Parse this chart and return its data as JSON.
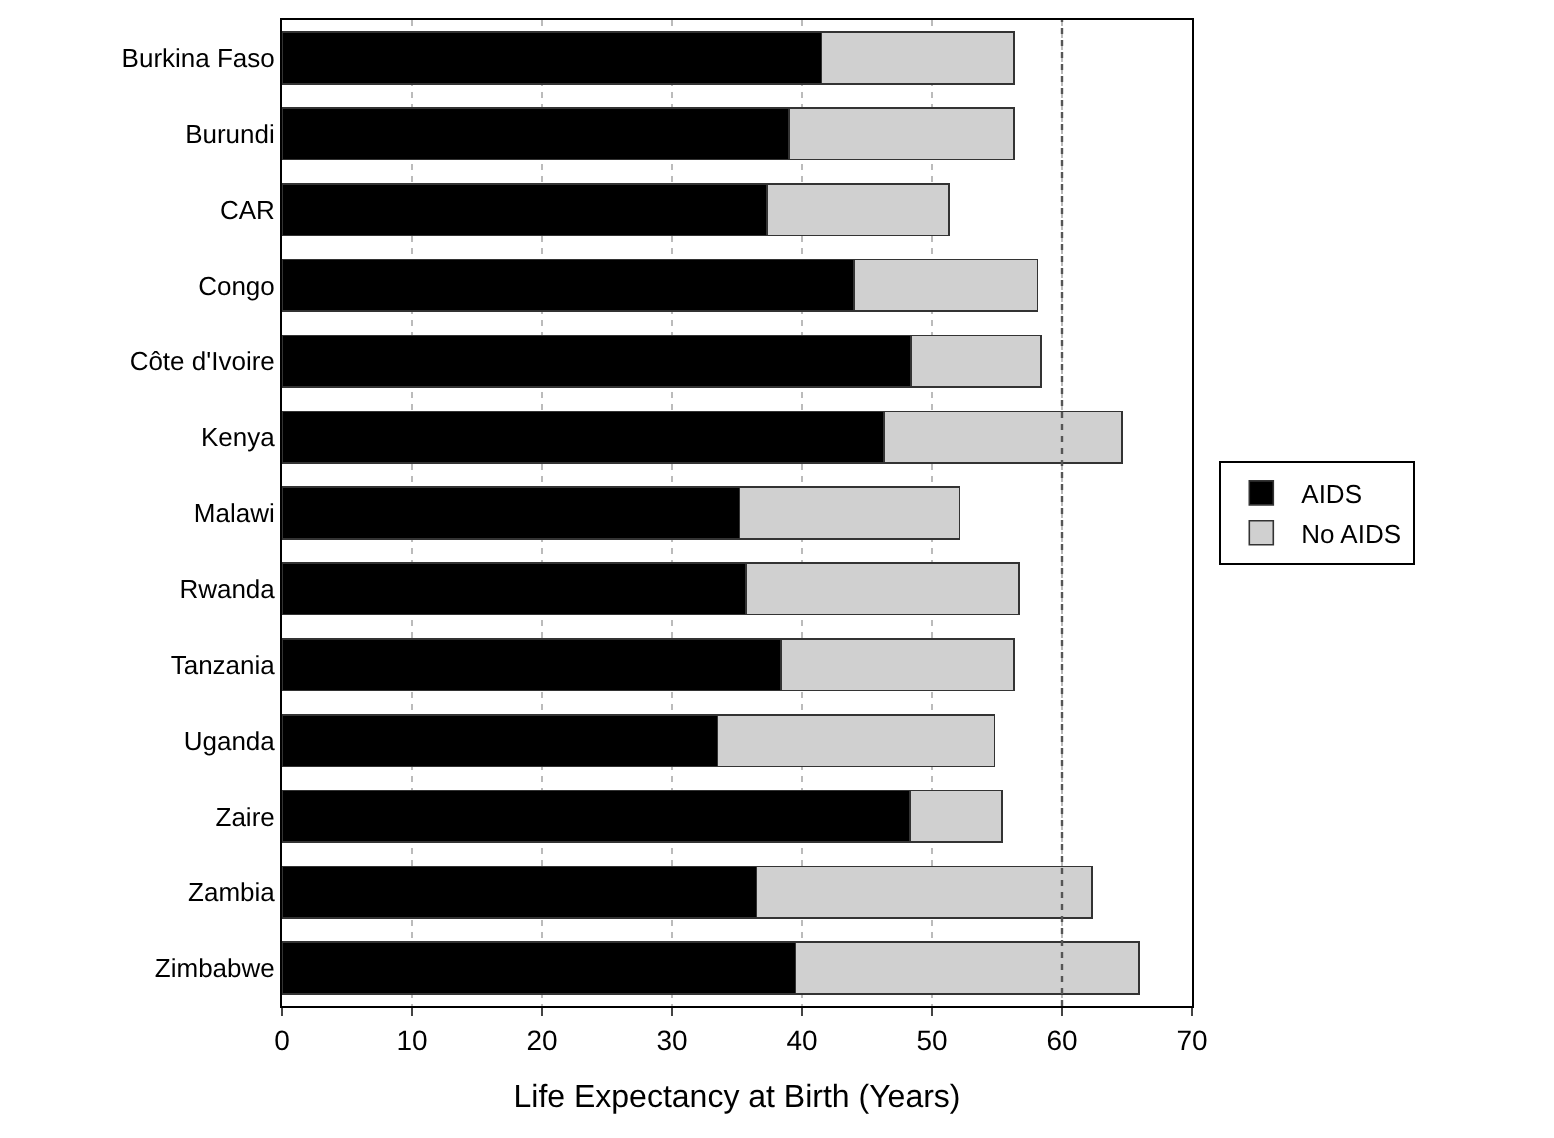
{
  "chart_data": {
    "type": "bar",
    "orientation": "horizontal",
    "stacked": true,
    "categories": [
      "Burkina Faso",
      "Burundi",
      "CAR",
      "Congo",
      "Côte d'Ivoire",
      "Kenya",
      "Malawi",
      "Rwanda",
      "Tanzania",
      "Uganda",
      "Zaire",
      "Zambia",
      "Zimbabwe"
    ],
    "series": [
      {
        "name": "AIDS",
        "color": "#000000",
        "values": [
          41.5,
          39.0,
          37.3,
          44.0,
          48.4,
          46.3,
          35.2,
          35.7,
          38.4,
          33.5,
          48.3,
          36.5,
          39.5
        ]
      },
      {
        "name": "No AIDS",
        "color": "#d0d0d0",
        "values": [
          14.8,
          17.3,
          14.0,
          14.1,
          10.0,
          18.3,
          16.9,
          21.0,
          17.9,
          21.3,
          7.1,
          25.8,
          26.4
        ]
      }
    ],
    "xlabel": "Life Expectancy at Birth (Years)",
    "xlim": [
      0,
      70
    ],
    "xticks": [
      0,
      10,
      20,
      30,
      40,
      50,
      60,
      70
    ],
    "ref_lines": [
      {
        "axis": "x",
        "value": 60,
        "label": null,
        "color": "#555555",
        "line_style": "dotted"
      }
    ],
    "grid": "x",
    "legend": "right"
  }
}
